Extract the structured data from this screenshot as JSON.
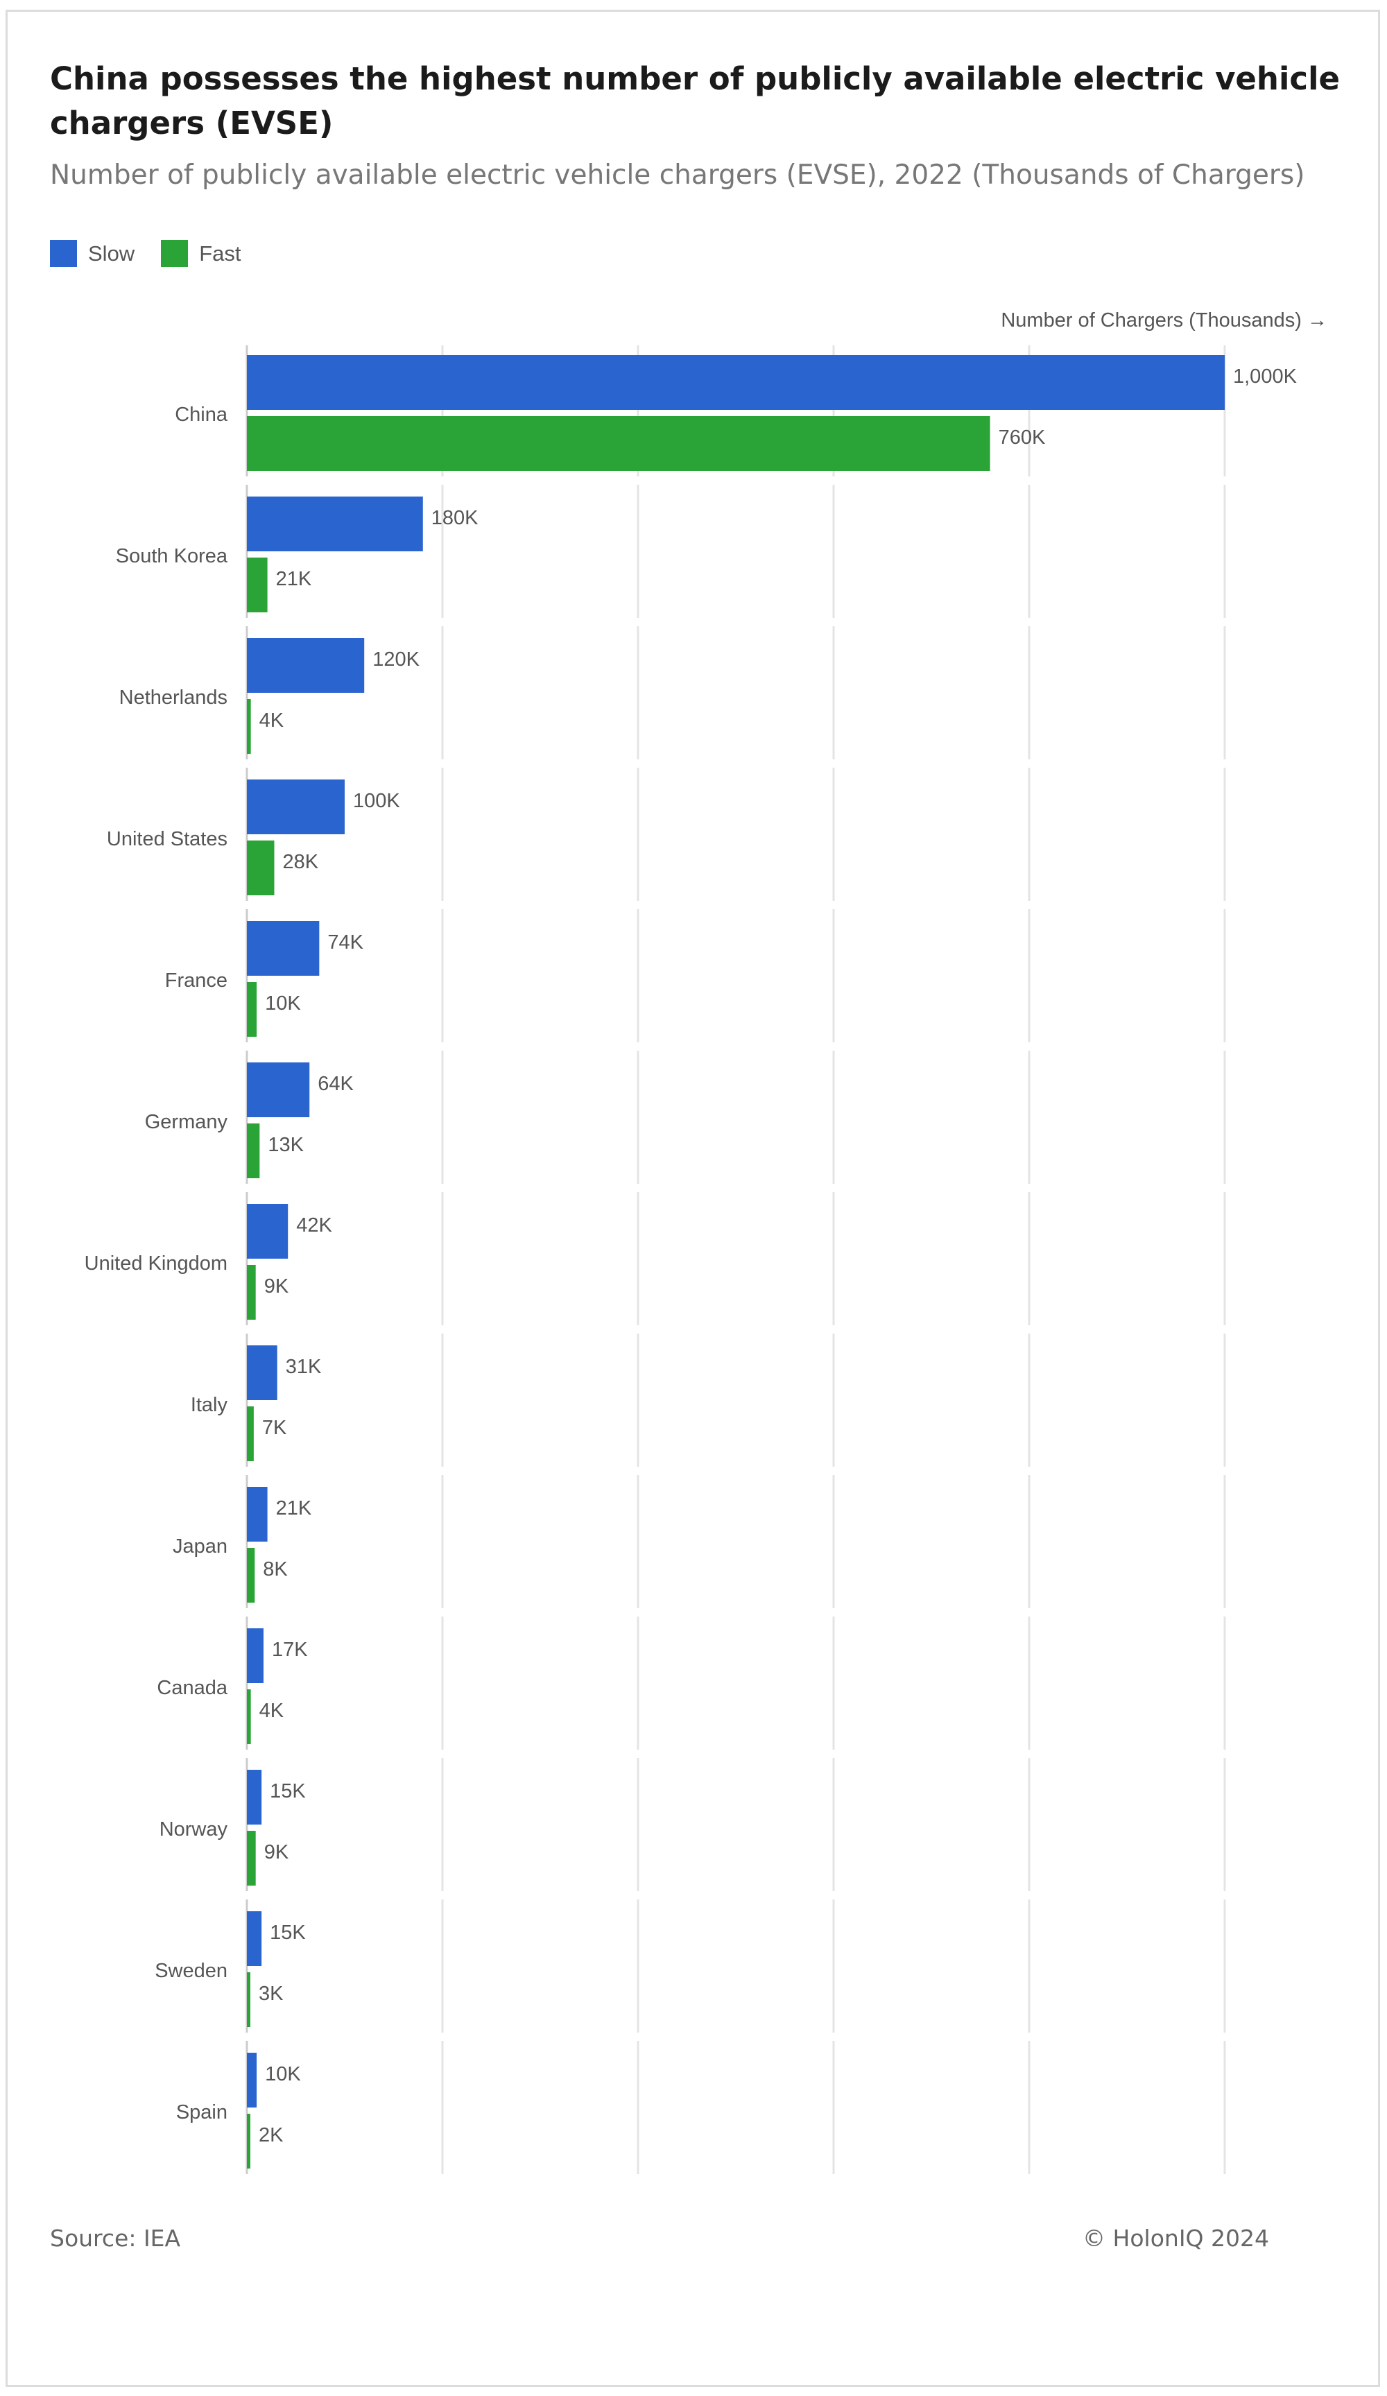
{
  "page": {
    "title": "China possesses the highest number of publicly available electric vehicle chargers (EVSE)",
    "subtitle": "Number of publicly available electric vehicle chargers (EVSE), 2022 (Thousands of Chargers)",
    "source": "Source: IEA",
    "copyright": "© HolonIQ 2024"
  },
  "chart_data": {
    "type": "bar",
    "orientation": "horizontal",
    "xlabel": "Number of Chargers (Thousands) →",
    "xlim": [
      0,
      1000
    ],
    "grid": true,
    "legend": {
      "position": "top-left",
      "entries": [
        "Slow",
        "Fast"
      ]
    },
    "categories": [
      "China",
      "South Korea",
      "Netherlands",
      "United States",
      "France",
      "Germany",
      "United Kingdom",
      "Italy",
      "Japan",
      "Canada",
      "Norway",
      "Sweden",
      "Spain"
    ],
    "series": [
      {
        "name": "Slow",
        "color": "#2a64cf",
        "values": [
          1000,
          180,
          120,
          100,
          74,
          64,
          42,
          31,
          21,
          17,
          15,
          15,
          10
        ],
        "labels": [
          "1,000K",
          "180K",
          "120K",
          "100K",
          "74K",
          "64K",
          "42K",
          "31K",
          "21K",
          "17K",
          "15K",
          "15K",
          "10K"
        ]
      },
      {
        "name": "Fast",
        "color": "#2aa436",
        "values": [
          760,
          21,
          4,
          28,
          10,
          13,
          9,
          7,
          8,
          4,
          9,
          3,
          2
        ],
        "labels": [
          "760K",
          "21K",
          "4K",
          "28K",
          "10K",
          "13K",
          "9K",
          "7K",
          "8K",
          "4K",
          "9K",
          "3K",
          "2K"
        ]
      }
    ]
  }
}
